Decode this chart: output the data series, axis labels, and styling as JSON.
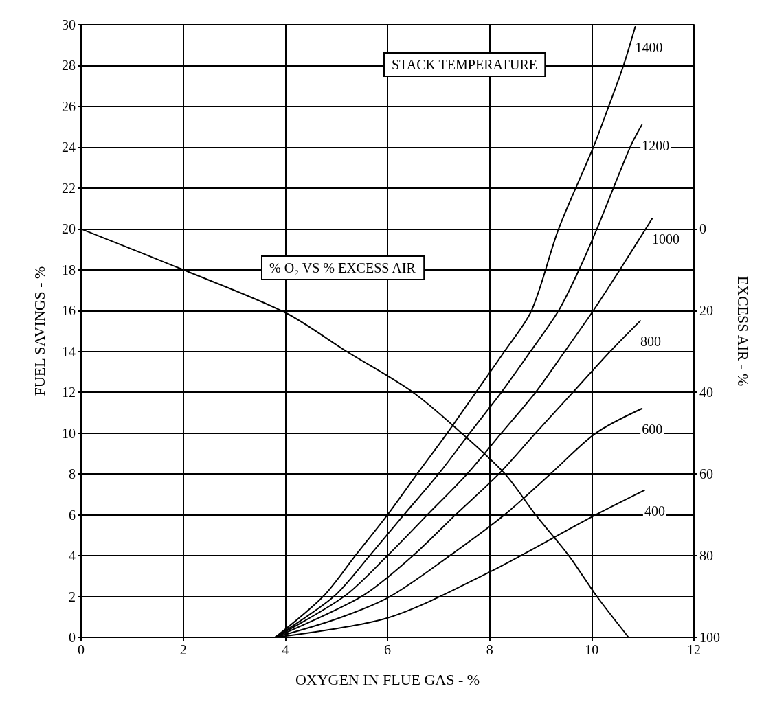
{
  "chart_data": {
    "type": "line",
    "xlabel": "OXYGEN IN FLUE GAS - %",
    "ylabel": "FUEL SAVINGS - %",
    "y2label": "EXCESS AIR - %",
    "annotations": [
      "STACK TEMPERATURE",
      "% O₂ VS % EXCESS AIR"
    ],
    "xlim": [
      0,
      12
    ],
    "xticks": [
      0,
      2,
      4,
      6,
      8,
      10,
      12
    ],
    "ylim": [
      0,
      30
    ],
    "yticks": [
      0,
      2,
      4,
      6,
      8,
      10,
      12,
      14,
      16,
      18,
      20,
      22,
      24,
      26,
      28,
      30
    ],
    "y2lim": [
      100,
      -50
    ],
    "y2ticks": [
      0,
      20,
      40,
      60,
      80,
      100
    ],
    "grid": true,
    "marker": "none",
    "line_style": "solid",
    "series": [
      {
        "color": "#000000",
        "axis": "y2",
        "x": [
          0,
          2,
          4,
          5.2,
          6.5,
          7.45,
          8.3,
          8.9,
          9.55,
          10.1,
          10.72
        ],
        "values": [
          0,
          10,
          20.5,
          30,
          40,
          50,
          60,
          70,
          80,
          90,
          100
        ]
      },
      {
        "name": "400",
        "color": "#000000",
        "x": [
          3.8,
          6,
          8,
          10,
          11.03
        ],
        "values": [
          0,
          0.95,
          3.2,
          5.9,
          7.2
        ]
      },
      {
        "name": "600",
        "color": "#000000",
        "x": [
          3.8,
          5,
          6.05,
          7.22,
          8.29,
          9.19,
          10.08,
          10.98
        ],
        "values": [
          0,
          0.9,
          2,
          4,
          6,
          8,
          10,
          11.2
        ]
      },
      {
        "name": "800",
        "color": "#000000",
        "x": [
          3.8,
          5.49,
          6.5,
          7.33,
          8.18,
          8.9,
          9.63,
          10.36,
          10.95
        ],
        "values": [
          0,
          2,
          4,
          6,
          8,
          10,
          12,
          14,
          15.5
        ]
      },
      {
        "name": "1000",
        "color": "#000000",
        "x": [
          3.8,
          5.15,
          6.0,
          6.78,
          7.56,
          8.23,
          8.9,
          9.47,
          10.03,
          10.55,
          11.18
        ],
        "values": [
          0,
          2,
          4,
          6,
          8,
          10,
          12,
          14,
          16,
          18,
          20.5
        ]
      },
      {
        "name": "1200",
        "color": "#000000",
        "x": [
          3.8,
          4.95,
          5.65,
          6.32,
          7.0,
          7.61,
          8.23,
          8.8,
          9.35,
          9.75,
          10.1,
          10.75,
          10.98
        ],
        "values": [
          0,
          2,
          4,
          6,
          8,
          10,
          12,
          14,
          16,
          18,
          20,
          24,
          25.1
        ]
      },
      {
        "name": "1400",
        "color": "#000000",
        "x": [
          3.8,
          4.74,
          5.37,
          6.0,
          6.58,
          7.17,
          7.73,
          8.29,
          8.82,
          9.35,
          10.03,
          10.33,
          10.62,
          10.85
        ],
        "values": [
          0,
          2,
          4,
          6,
          8,
          10,
          12,
          14,
          16,
          20,
          24,
          26,
          28,
          29.9
        ]
      }
    ]
  }
}
